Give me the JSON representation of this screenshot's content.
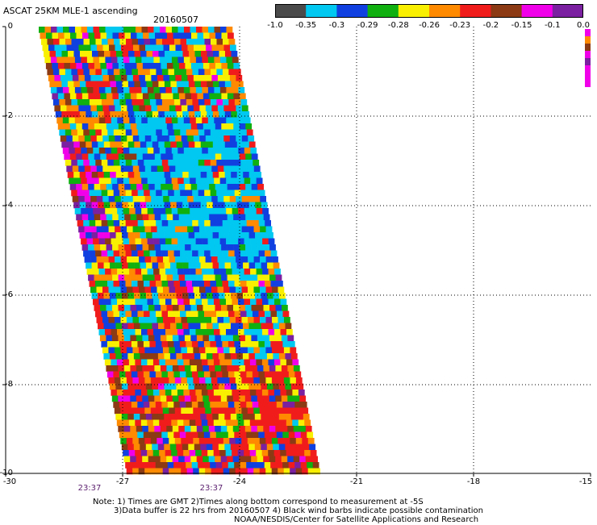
{
  "header": {
    "title": "ASCAT 25KM MLE-1 ascending",
    "date": "20160507"
  },
  "colorbar": {
    "colors": [
      "#4a4a4a",
      "#00c8f0",
      "#1040e0",
      "#10b010",
      "#f8f000",
      "#ff8a00",
      "#f01c1c",
      "#8b3a14",
      "#f000e8",
      "#7a20a0"
    ],
    "labels": [
      "-1.0",
      "-0.35",
      "-0.3",
      "-0.29",
      "-0.28",
      "-0.26",
      "-0.23",
      "-0.2",
      "-0.15",
      "-0.1",
      "0.0"
    ]
  },
  "axes": {
    "y_labels": [
      "0",
      "-2",
      "-4",
      "-6",
      "-8",
      "-10"
    ],
    "x_labels": [
      "-30",
      "-27",
      "-24",
      "-21",
      "-18",
      "-15"
    ],
    "times": [
      "23:37",
      "23:37"
    ]
  },
  "notes": {
    "line1": "Note: 1) Times are GMT 2)Times along bottom correspond to measurement at -5S",
    "line2": "3)Data buffer is 22 hrs from 20160507 4) Black wind barbs indicate possible contamination",
    "line3": "NOAA/NESDIS/Center for Satellite Applications and Research"
  }
}
